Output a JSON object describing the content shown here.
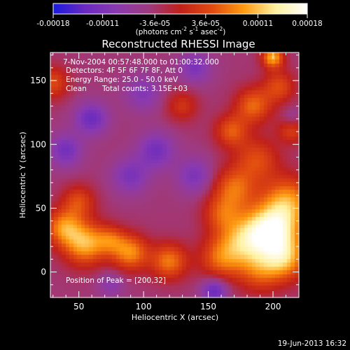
{
  "chart_data": {
    "type": "heatmap",
    "title": "Reconstructed RHESSI Image",
    "xlabel": "Heliocentric X (arcsec)",
    "ylabel": "Heliocentric Y (arcsec)",
    "xlim": [
      28,
      220
    ],
    "ylim": [
      -20,
      172
    ],
    "x_ticks": [
      50,
      100,
      150,
      200
    ],
    "y_ticks": [
      0,
      50,
      100,
      150
    ],
    "colorbar": {
      "tick_labels": [
        "-0.00018",
        "-0.00011",
        "-3.6e-05",
        "3.6e-05",
        "0.00011",
        "0.00018"
      ],
      "range": [
        -0.00018,
        0.00018
      ],
      "unit_line1": "(photons cm",
      "unit_exp1": "-2",
      "unit_mid": " s",
      "unit_exp2": "-1",
      "unit_tail": " asec",
      "unit_exp3": "-2",
      "unit_close": ")",
      "colors": [
        "#1a1ae0",
        "#6a2ac0",
        "#8a3ab0",
        "#9e3a80",
        "#c0201a",
        "#e04a10",
        "#ff9a10",
        "#fff1a0",
        "#ffffff"
      ]
    },
    "annotations": {
      "time_range": "7-Nov-2004 00:57:48.000 to 01:00:32.000",
      "detectors": "Detectors: 4F 5F 6F 7F 8F, Att 0",
      "energy": "Energy Range: 25.0 - 50.0 keV",
      "clean_label": "Clean",
      "total_counts": "Total counts: 3.15E+03",
      "peak": "Position of Peak = [200,32]"
    },
    "footer_date": "19-Jun-2013 16:32",
    "blobs": [
      {
        "x": 200,
        "y": 32,
        "amp": 0.00018,
        "s": 14
      },
      {
        "x": 178,
        "y": 25,
        "amp": 0.00012,
        "s": 14
      },
      {
        "x": 212,
        "y": 55,
        "amp": 0.00012,
        "s": 14
      },
      {
        "x": 170,
        "y": 65,
        "amp": 0.0001,
        "s": 12
      },
      {
        "x": 188,
        "y": 88,
        "amp": 8e-05,
        "s": 12
      },
      {
        "x": 160,
        "y": 10,
        "amp": 9e-05,
        "s": 12
      },
      {
        "x": 210,
        "y": 10,
        "amp": 0.00012,
        "s": 12
      },
      {
        "x": 160,
        "y": 45,
        "amp": 7e-05,
        "s": 10
      },
      {
        "x": 190,
        "y": 0,
        "amp": 8e-05,
        "s": 12
      },
      {
        "x": 55,
        "y": 22,
        "amp": 0.00014,
        "s": 12
      },
      {
        "x": 38,
        "y": 35,
        "amp": 0.00011,
        "s": 10
      },
      {
        "x": 50,
        "y": 55,
        "amp": 8e-05,
        "s": 9
      },
      {
        "x": 90,
        "y": 15,
        "amp": 0.00012,
        "s": 10
      },
      {
        "x": 120,
        "y": 8,
        "amp": 0.00011,
        "s": 10
      },
      {
        "x": 75,
        "y": 25,
        "amp": 7e-05,
        "s": 8
      },
      {
        "x": 185,
        "y": 130,
        "amp": 0.0001,
        "s": 10
      },
      {
        "x": 168,
        "y": 110,
        "amp": 9e-05,
        "s": 9
      },
      {
        "x": 205,
        "y": 145,
        "amp": 8e-05,
        "s": 9
      },
      {
        "x": 200,
        "y": 168,
        "amp": 0.00014,
        "s": 6
      },
      {
        "x": 215,
        "y": 112,
        "amp": 8e-05,
        "s": 8
      },
      {
        "x": 130,
        "y": 130,
        "amp": 6e-05,
        "s": 9
      },
      {
        "x": 30,
        "y": 148,
        "amp": 8e-05,
        "s": 9
      },
      {
        "x": 110,
        "y": 95,
        "amp": -8e-05,
        "s": 10
      },
      {
        "x": 90,
        "y": 75,
        "amp": -7e-05,
        "s": 10
      },
      {
        "x": 140,
        "y": 75,
        "amp": -7e-05,
        "s": 10
      },
      {
        "x": 60,
        "y": 120,
        "amp": -9e-05,
        "s": 9
      },
      {
        "x": 100,
        "y": 140,
        "amp": -6e-05,
        "s": 10
      },
      {
        "x": 140,
        "y": 160,
        "amp": -7e-05,
        "s": 9
      },
      {
        "x": 155,
        "y": -15,
        "amp": -0.0001,
        "s": 7
      },
      {
        "x": 40,
        "y": 95,
        "amp": -8e-05,
        "s": 9
      },
      {
        "x": 215,
        "y": 120,
        "amp": -5e-05,
        "s": 6
      },
      {
        "x": 75,
        "y": -10,
        "amp": -5e-05,
        "s": 7
      }
    ]
  }
}
